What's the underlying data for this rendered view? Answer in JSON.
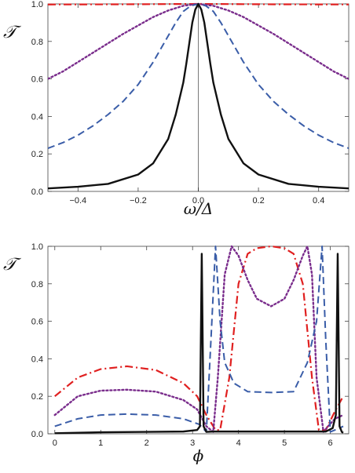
{
  "chart_data": [
    {
      "type": "line",
      "xlabel": "ω/Δ",
      "ylabel": "𝒯",
      "xlim": [
        -0.5,
        0.5
      ],
      "ylim": [
        0,
        1.0
      ],
      "xticks": [
        -0.4,
        -0.2,
        0.0,
        0.2,
        0.4
      ],
      "xtick_labels": [
        "−0.4",
        "−0.2",
        "0.0",
        "0.2",
        "0.4"
      ],
      "yticks": [
        0,
        0.2,
        0.4,
        0.6,
        0.8,
        1.0
      ],
      "ytick_labels": [
        "0.0",
        "0.2",
        "0.4",
        "0.6",
        "0.8",
        "1.0"
      ],
      "vline_x": 0,
      "series": [
        {
          "style": "dash-dot",
          "color": "#e02020",
          "x": [
            -0.5,
            -0.25,
            0,
            0.25,
            0.5
          ],
          "y": [
            0.997,
            0.998,
            1.0,
            0.998,
            0.997
          ]
        },
        {
          "style": "dotted",
          "color": "#7a2d8c",
          "x": [
            -0.5,
            -0.45,
            -0.4,
            -0.35,
            -0.3,
            -0.25,
            -0.2,
            -0.15,
            -0.1,
            -0.05,
            0,
            0.05,
            0.1,
            0.15,
            0.2,
            0.25,
            0.3,
            0.35,
            0.4,
            0.45,
            0.5
          ],
          "y": [
            0.6,
            0.64,
            0.69,
            0.74,
            0.79,
            0.84,
            0.885,
            0.93,
            0.965,
            0.99,
            1.0,
            0.99,
            0.965,
            0.93,
            0.885,
            0.84,
            0.79,
            0.74,
            0.69,
            0.64,
            0.6
          ]
        },
        {
          "style": "dashed",
          "color": "#3a5da8",
          "x": [
            -0.5,
            -0.45,
            -0.4,
            -0.35,
            -0.3,
            -0.25,
            -0.2,
            -0.15,
            -0.1,
            -0.075,
            -0.05,
            -0.025,
            0,
            0.025,
            0.05,
            0.075,
            0.1,
            0.15,
            0.2,
            0.25,
            0.3,
            0.35,
            0.4,
            0.45,
            0.5
          ],
          "y": [
            0.23,
            0.26,
            0.3,
            0.35,
            0.41,
            0.48,
            0.57,
            0.69,
            0.83,
            0.9,
            0.96,
            0.99,
            1.0,
            0.99,
            0.96,
            0.9,
            0.83,
            0.69,
            0.57,
            0.48,
            0.41,
            0.35,
            0.3,
            0.26,
            0.23
          ]
        },
        {
          "style": "solid",
          "color": "#111111",
          "x": [
            -0.5,
            -0.4,
            -0.3,
            -0.2,
            -0.15,
            -0.1,
            -0.075,
            -0.05,
            -0.04,
            -0.03,
            -0.02,
            -0.01,
            0,
            0.01,
            0.02,
            0.03,
            0.04,
            0.05,
            0.075,
            0.1,
            0.15,
            0.2,
            0.3,
            0.4,
            0.5
          ],
          "y": [
            0.016,
            0.025,
            0.04,
            0.09,
            0.15,
            0.28,
            0.41,
            0.58,
            0.68,
            0.79,
            0.9,
            0.97,
            1.0,
            0.97,
            0.9,
            0.79,
            0.68,
            0.58,
            0.41,
            0.28,
            0.15,
            0.09,
            0.04,
            0.025,
            0.016
          ]
        }
      ]
    },
    {
      "type": "line",
      "xlabel": "ϕ",
      "ylabel": "𝒯",
      "xlim": [
        -0.15,
        6.4
      ],
      "ylim": [
        0,
        1.0
      ],
      "xticks": [
        0,
        1,
        2,
        3,
        4,
        5,
        6
      ],
      "xtick_labels": [
        "0",
        "1",
        "2",
        "3",
        "4",
        "5",
        "6"
      ],
      "yticks": [
        0,
        0.2,
        0.4,
        0.6,
        0.8,
        1.0
      ],
      "ytick_labels": [
        "0.0",
        "0.2",
        "0.4",
        "0.6",
        "0.8",
        "1.0"
      ],
      "series": [
        {
          "style": "dash-dot",
          "color": "#e02020",
          "x": [
            0,
            0.5,
            1.0,
            1.57,
            2.2,
            2.8,
            3.1,
            3.3,
            3.5,
            3.6,
            3.8,
            4.0,
            4.2,
            4.4,
            4.71,
            5.0,
            5.2,
            5.4,
            5.6,
            5.75,
            5.9,
            6.1,
            6.28
          ],
          "y": [
            0.2,
            0.3,
            0.345,
            0.36,
            0.34,
            0.27,
            0.2,
            0.1,
            0.02,
            0.02,
            0.3,
            0.8,
            0.96,
            0.99,
            1.0,
            0.99,
            0.96,
            0.8,
            0.3,
            0.02,
            0.02,
            0.12,
            0.2
          ]
        },
        {
          "style": "dotted",
          "color": "#7a2d8c",
          "x": [
            0,
            0.5,
            1.0,
            1.57,
            2.2,
            2.8,
            3.1,
            3.3,
            3.45,
            3.55,
            3.7,
            3.85,
            4.0,
            4.2,
            4.4,
            4.71,
            5.0,
            5.2,
            5.4,
            5.5,
            5.6,
            5.7,
            5.85,
            5.95,
            6.1,
            6.28
          ],
          "y": [
            0.1,
            0.2,
            0.23,
            0.235,
            0.225,
            0.18,
            0.13,
            0.04,
            0.01,
            0.3,
            0.85,
            1.0,
            0.95,
            0.82,
            0.72,
            0.68,
            0.72,
            0.82,
            0.95,
            1.0,
            0.85,
            0.3,
            0.01,
            0.04,
            0.08,
            0.1
          ]
        },
        {
          "style": "dashed",
          "color": "#3a5da8",
          "x": [
            0,
            0.5,
            1.0,
            1.57,
            2.2,
            2.8,
            3.15,
            3.3,
            3.4,
            3.5,
            3.6,
            3.7,
            3.9,
            4.2,
            4.71,
            5.2,
            5.5,
            5.7,
            5.82,
            5.9,
            6.0,
            6.1,
            6.2,
            6.28
          ],
          "y": [
            0.04,
            0.08,
            0.1,
            0.105,
            0.1,
            0.08,
            0.05,
            0.01,
            0.5,
            1.0,
            0.6,
            0.38,
            0.27,
            0.225,
            0.22,
            0.225,
            0.38,
            0.6,
            1.0,
            0.5,
            0.01,
            0.02,
            0.03,
            0.04
          ]
        },
        {
          "style": "solid",
          "color": "#111111",
          "x": [
            0,
            1.0,
            2.0,
            2.8,
            3.1,
            3.16,
            3.2,
            3.24,
            3.3,
            3.45,
            3.6,
            4.0,
            4.71,
            5.4,
            5.9,
            6.05,
            6.12,
            6.16,
            6.2,
            6.25,
            6.28
          ],
          "y": [
            0.003,
            0.008,
            0.01,
            0.012,
            0.02,
            0.04,
            0.96,
            0.04,
            0.01,
            0.012,
            0.012,
            0.012,
            0.012,
            0.012,
            0.012,
            0.03,
            0.1,
            0.96,
            0.04,
            0.01,
            0.005
          ]
        }
      ]
    }
  ]
}
